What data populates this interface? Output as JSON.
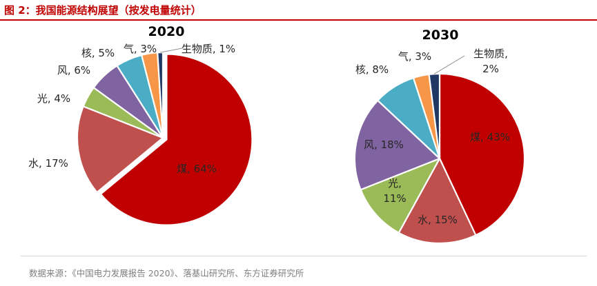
{
  "figure": {
    "title": "图 2：我国能源结构展望（按发电量统计）",
    "source": "数据来源：《中国电力发展报告 2020》、落基山研究所、东方证券研究所"
  },
  "colors": {
    "coal": "#c00000",
    "hydro": "#c0504d",
    "solar": "#9bbb59",
    "wind": "#8064a2",
    "nuclear": "#4bacc6",
    "gas": "#f79646",
    "biomass": "#1f3864",
    "title_red": "#c00000"
  },
  "chart_data": [
    {
      "type": "pie",
      "title": "2020",
      "slices": [
        {
          "label": "煤",
          "value": 64,
          "text": "煤, 64%",
          "color_key": "coal"
        },
        {
          "label": "水",
          "value": 17,
          "text": "水, 17%",
          "color_key": "hydro"
        },
        {
          "label": "光",
          "value": 4,
          "text": "光, 4%",
          "color_key": "solar"
        },
        {
          "label": "风",
          "value": 6,
          "text": "风, 6%",
          "color_key": "wind"
        },
        {
          "label": "核",
          "value": 5,
          "text": "核, 5%",
          "color_key": "nuclear"
        },
        {
          "label": "气",
          "value": 3,
          "text": "气, 3%",
          "color_key": "gas"
        },
        {
          "label": "生物质",
          "value": 1,
          "text": "生物质, 1%",
          "color_key": "biomass"
        }
      ]
    },
    {
      "type": "pie",
      "title": "2030",
      "slices": [
        {
          "label": "煤",
          "value": 43,
          "text": "煤, 43%",
          "color_key": "coal"
        },
        {
          "label": "水",
          "value": 15,
          "text": "水, 15%",
          "color_key": "hydro"
        },
        {
          "label": "光",
          "value": 11,
          "text": "光, 11%",
          "color_key": "solar"
        },
        {
          "label": "风",
          "value": 18,
          "text": "风, 18%",
          "color_key": "wind"
        },
        {
          "label": "核",
          "value": 8,
          "text": "核, 8%",
          "color_key": "nuclear"
        },
        {
          "label": "气",
          "value": 3,
          "text": "气, 3%",
          "color_key": "gas"
        },
        {
          "label": "生物质",
          "value": 2,
          "text": "生物质, 2%",
          "color_key": "biomass"
        }
      ]
    }
  ]
}
